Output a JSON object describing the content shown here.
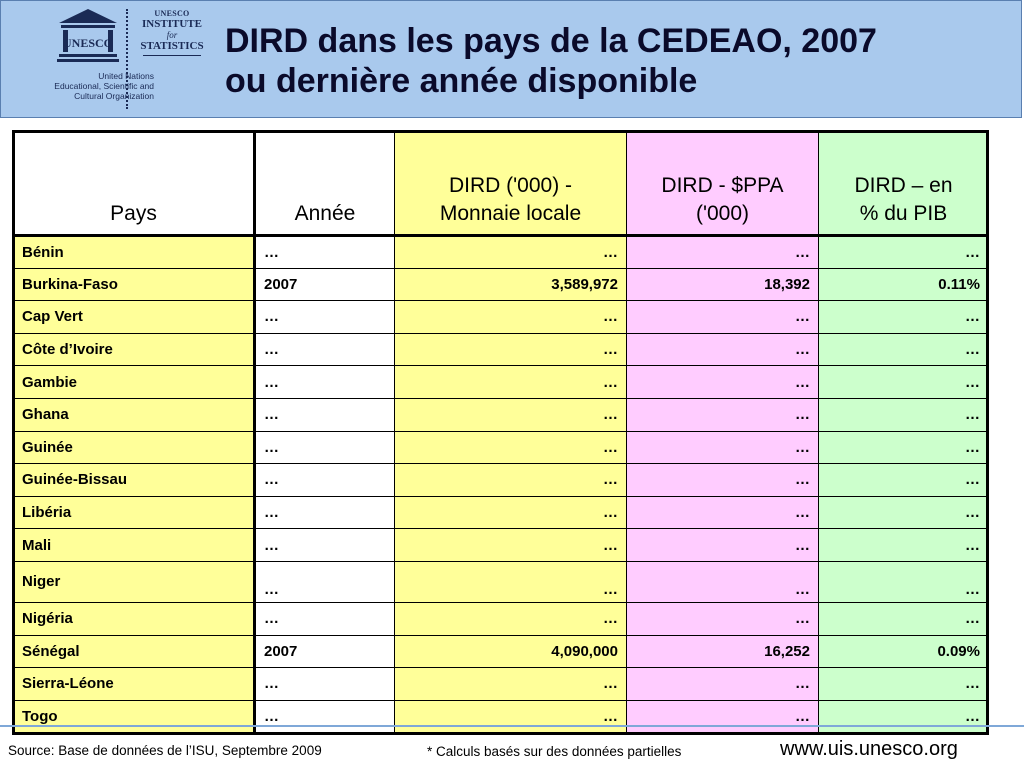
{
  "header": {
    "title": "DIRD dans les pays de la CEDEAO, 2007\nou dernière année disponible",
    "logo_unesco_org": "United Nations\nEducational, Scientific and\nCultural Organization",
    "logo_uis": [
      "UNESCO",
      "INSTITUTE",
      "for",
      "STATISTICS"
    ],
    "logo_unesco_word": "UNESCO"
  },
  "table": {
    "headers": [
      "Pays",
      "Année",
      "DIRD ('000) -\nMonnaie locale",
      "DIRD -  $PPA\n('000)",
      "DIRD – en\n% du PIB"
    ],
    "rows": [
      [
        "Bénin",
        "…",
        "…",
        "…",
        "…"
      ],
      [
        "Burkina-Faso",
        "2007",
        "3,589,972",
        "18,392",
        "0.11%"
      ],
      [
        "Cap Vert",
        "…",
        "…",
        "…",
        "…"
      ],
      [
        "Côte d’Ivoire",
        "…",
        "…",
        "…",
        "…"
      ],
      [
        "Gambie",
        "…",
        "…",
        "…",
        "…"
      ],
      [
        "Ghana",
        "…",
        "…",
        "…",
        "…"
      ],
      [
        "Guinée",
        "…",
        "…",
        "…",
        "…"
      ],
      [
        "Guinée-Bissau",
        "…",
        "…",
        "…",
        "…"
      ],
      [
        "Libéria",
        "…",
        "…",
        "…",
        "…"
      ],
      [
        "Mali",
        "…",
        "…",
        "…",
        "…"
      ],
      [
        "Niger",
        "…",
        "…",
        "…",
        "…"
      ],
      [
        "Nigéria",
        "…",
        "…",
        "…",
        "…"
      ],
      [
        "Sénégal",
        "2007",
        "4,090,000",
        "16,252",
        "0.09%"
      ],
      [
        "Sierra-Léone",
        "…",
        "…",
        "…",
        "…"
      ],
      [
        "Togo",
        "…",
        "…",
        "…",
        "…"
      ]
    ]
  },
  "footer": {
    "source": "Source: Base de données de l’ISU,  Septembre 2009",
    "note": "* Calculs basés sur des données partielles",
    "url": "www.uis.unesco.org"
  },
  "colors": {
    "header_bg": "#a9c9ed",
    "yellow": "#ffff99",
    "pink": "#ffccff",
    "green": "#ccffcc"
  }
}
